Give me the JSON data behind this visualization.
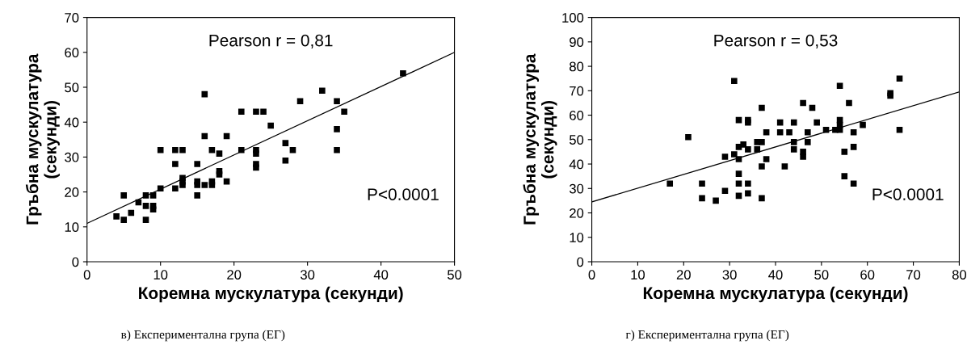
{
  "chart_data": [
    {
      "type": "scatter",
      "xlabel": "Коремна мускулатура (секунди)",
      "ylabel": "Гръбна мускулатура\n(секунди)",
      "xlim": [
        0,
        50
      ],
      "xticks": [
        0,
        10,
        20,
        30,
        40,
        50
      ],
      "ylim": [
        0,
        70
      ],
      "yticks": [
        0,
        10,
        20,
        30,
        40,
        50,
        60,
        70
      ],
      "grid": false,
      "legend": false,
      "series": [
        {
          "marker": "square",
          "color": "#000000",
          "x": [
            4,
            5,
            5,
            6,
            7,
            8,
            8,
            8,
            9,
            9,
            9,
            10,
            10,
            12,
            12,
            12,
            13,
            13,
            13,
            13,
            15,
            15,
            15,
            15,
            16,
            16,
            16,
            17,
            17,
            17,
            18,
            18,
            18,
            19,
            19,
            21,
            21,
            23,
            23,
            23,
            23,
            23,
            24,
            25,
            27,
            27,
            28,
            29,
            32,
            34,
            34,
            34,
            35,
            43
          ],
          "values": [
            13,
            12,
            19,
            14,
            17,
            12,
            16,
            19,
            15,
            16,
            19,
            21,
            32,
            21,
            28,
            32,
            22,
            23,
            24,
            32,
            19,
            22,
            23,
            28,
            22,
            36,
            48,
            22,
            23,
            32,
            25,
            26,
            31,
            23,
            36,
            32,
            43,
            27,
            28,
            31,
            32,
            43,
            43,
            39,
            29,
            34,
            32,
            46,
            49,
            32,
            38,
            46,
            43,
            54
          ]
        },
        {
          "type": "line",
          "color": "#000000",
          "x": [
            0,
            50
          ],
          "values": [
            11,
            60
          ]
        }
      ],
      "annotations": [
        "Pearson r = 0,81",
        "P<0.0001",
        "в) Експериментална група (ЕГ)"
      ]
    },
    {
      "type": "scatter",
      "xlabel": "Коремна мускулатура (секунди)",
      "ylabel": "Гръбна мускулатура\n(секунди)",
      "xlim": [
        0,
        80
      ],
      "xticks": [
        0,
        10,
        20,
        30,
        40,
        50,
        60,
        70,
        80
      ],
      "ylim": [
        0,
        100
      ],
      "yticks": [
        0,
        10,
        20,
        30,
        40,
        50,
        60,
        70,
        80,
        90,
        100
      ],
      "grid": false,
      "legend": false,
      "series": [
        {
          "marker": "square",
          "color": "#000000",
          "x": [
            17,
            21,
            24,
            24,
            27,
            29,
            29,
            31,
            31,
            32,
            32,
            32,
            32,
            32,
            32,
            33,
            34,
            34,
            34,
            34,
            34,
            36,
            36,
            37,
            37,
            37,
            37,
            38,
            38,
            41,
            41,
            42,
            43,
            44,
            44,
            44,
            46,
            46,
            46,
            47,
            47,
            48,
            49,
            51,
            53,
            54,
            54,
            54,
            54,
            55,
            55,
            56,
            57,
            57,
            57,
            59,
            65,
            65,
            67,
            67
          ],
          "values": [
            32,
            51,
            26,
            32,
            25,
            29,
            43,
            44,
            74,
            27,
            32,
            36,
            42,
            47,
            58,
            48,
            28,
            32,
            46,
            57,
            58,
            46,
            49,
            26,
            39,
            49,
            63,
            42,
            53,
            53,
            57,
            39,
            53,
            46,
            49,
            57,
            43,
            45,
            65,
            49,
            53,
            63,
            57,
            54,
            54,
            54,
            56,
            58,
            72,
            35,
            45,
            65,
            32,
            47,
            53,
            56,
            68,
            69,
            54,
            75
          ]
        },
        {
          "type": "line",
          "color": "#000000",
          "x": [
            0,
            80
          ],
          "values": [
            24.5,
            69.5
          ]
        }
      ],
      "annotations": [
        "Pearson r = 0,53",
        "P<0.0001",
        "г) Експериментална група (ЕГ)"
      ]
    }
  ]
}
